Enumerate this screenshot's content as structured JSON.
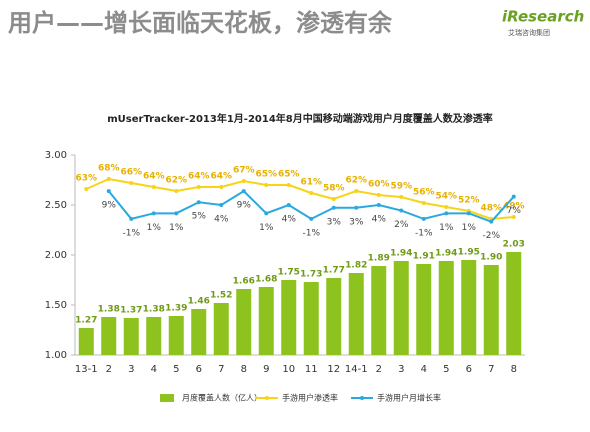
{
  "header": {
    "title": "用户——增长面临天花板，渗透有余",
    "logo": "iResearch",
    "logo_sub": "艾瑞咨询集团"
  },
  "chart_data": {
    "type": "bar",
    "title": "mUserTracker-2013年1月-2014年8月中国移动端游戏用户月度覆盖人数及渗透率",
    "categories": [
      "13-1",
      "2",
      "3",
      "4",
      "5",
      "6",
      "7",
      "8",
      "9",
      "10",
      "11",
      "12",
      "14-1",
      "2",
      "3",
      "4",
      "5",
      "6",
      "7",
      "8"
    ],
    "ylim": [
      1,
      3
    ],
    "yticks": [
      {
        "value": 1,
        "label": "1.00"
      },
      {
        "value": 1.5,
        "label": "1.50"
      },
      {
        "value": 2,
        "label": "2.00"
      },
      {
        "value": 2.5,
        "label": "2.50"
      },
      {
        "value": 3,
        "label": "3.00"
      }
    ],
    "y2lim": [
      -20,
      80
    ],
    "y3lim": [
      -50,
      22
    ],
    "grid": false,
    "series": [
      {
        "name": "月度覆盖人数（亿人）",
        "type": "bar",
        "color": "#8dc21f",
        "values": [
          1.27,
          1.38,
          1.37,
          1.38,
          1.39,
          1.46,
          1.52,
          1.66,
          1.68,
          1.75,
          1.73,
          1.77,
          1.82,
          1.89,
          1.94,
          1.91,
          1.94,
          1.95,
          1.9,
          2.03
        ],
        "value_labels": [
          "1.27",
          "1.38",
          "1.37",
          "1.38",
          "1.39",
          "1.46",
          "1.52",
          "1.66",
          "1.68",
          "1.75",
          "1.73",
          "1.77",
          "1.82",
          "1.89",
          "1.94",
          "1.91",
          "1.94",
          "1.95",
          "1.90",
          "2.03"
        ]
      },
      {
        "name": "手游用户渗透率",
        "type": "line",
        "axis": "y2",
        "color": "#f7d417",
        "values": [
          63,
          68,
          66,
          64,
          62,
          64,
          64,
          67,
          65,
          65,
          61,
          58,
          62,
          60,
          59,
          56,
          54,
          52,
          48,
          49
        ],
        "value_labels": [
          "63%",
          "68%",
          "66%",
          "64%",
          "62%",
          "64%",
          "64%",
          "67%",
          "65%",
          "65%",
          "61%",
          "58%",
          "62%",
          "60%",
          "59%",
          "56%",
          "54%",
          "52%",
          "48%",
          "49%"
        ]
      },
      {
        "name": "手游用户月增长率",
        "type": "line",
        "axis": "y3",
        "color": "#2aa9e0",
        "values": [
          null,
          9,
          -1,
          1,
          1,
          5,
          4,
          9,
          1,
          4,
          -1,
          3,
          3,
          4,
          2,
          -1,
          1,
          1,
          -2,
          7
        ],
        "value_labels": [
          null,
          "9%",
          "-1%",
          "1%",
          "1%",
          "5%",
          "4%",
          "9%",
          "1%",
          "4%",
          "-1%",
          "3%",
          "3%",
          "4%",
          "2%",
          "-1%",
          "1%",
          "1%",
          "-2%",
          "7%"
        ]
      }
    ]
  }
}
